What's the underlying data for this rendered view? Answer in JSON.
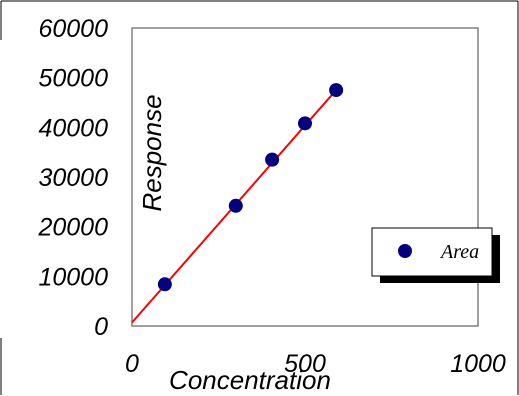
{
  "chart_data": {
    "type": "scatter",
    "title": "",
    "xlabel": "Concentration",
    "ylabel": "Response",
    "xlim": [
      0,
      1000
    ],
    "ylim": [
      0,
      60000
    ],
    "x_ticks": [
      "0",
      "500",
      "1000"
    ],
    "y_ticks": [
      "0",
      "10000",
      "20000",
      "30000",
      "40000",
      "50000",
      "60000"
    ],
    "grid": false,
    "legend_position": "right",
    "series": [
      {
        "name": "Area",
        "color": "#000080",
        "marker": "circle",
        "points": [
          {
            "x": 95,
            "y": 8400
          },
          {
            "x": 300,
            "y": 24200
          },
          {
            "x": 405,
            "y": 33500
          },
          {
            "x": 500,
            "y": 40800
          },
          {
            "x": 590,
            "y": 47500
          }
        ]
      }
    ],
    "trendline": {
      "color": "#ff0000",
      "x_range": [
        0,
        590
      ],
      "y_values": [
        700,
        47500
      ]
    }
  }
}
